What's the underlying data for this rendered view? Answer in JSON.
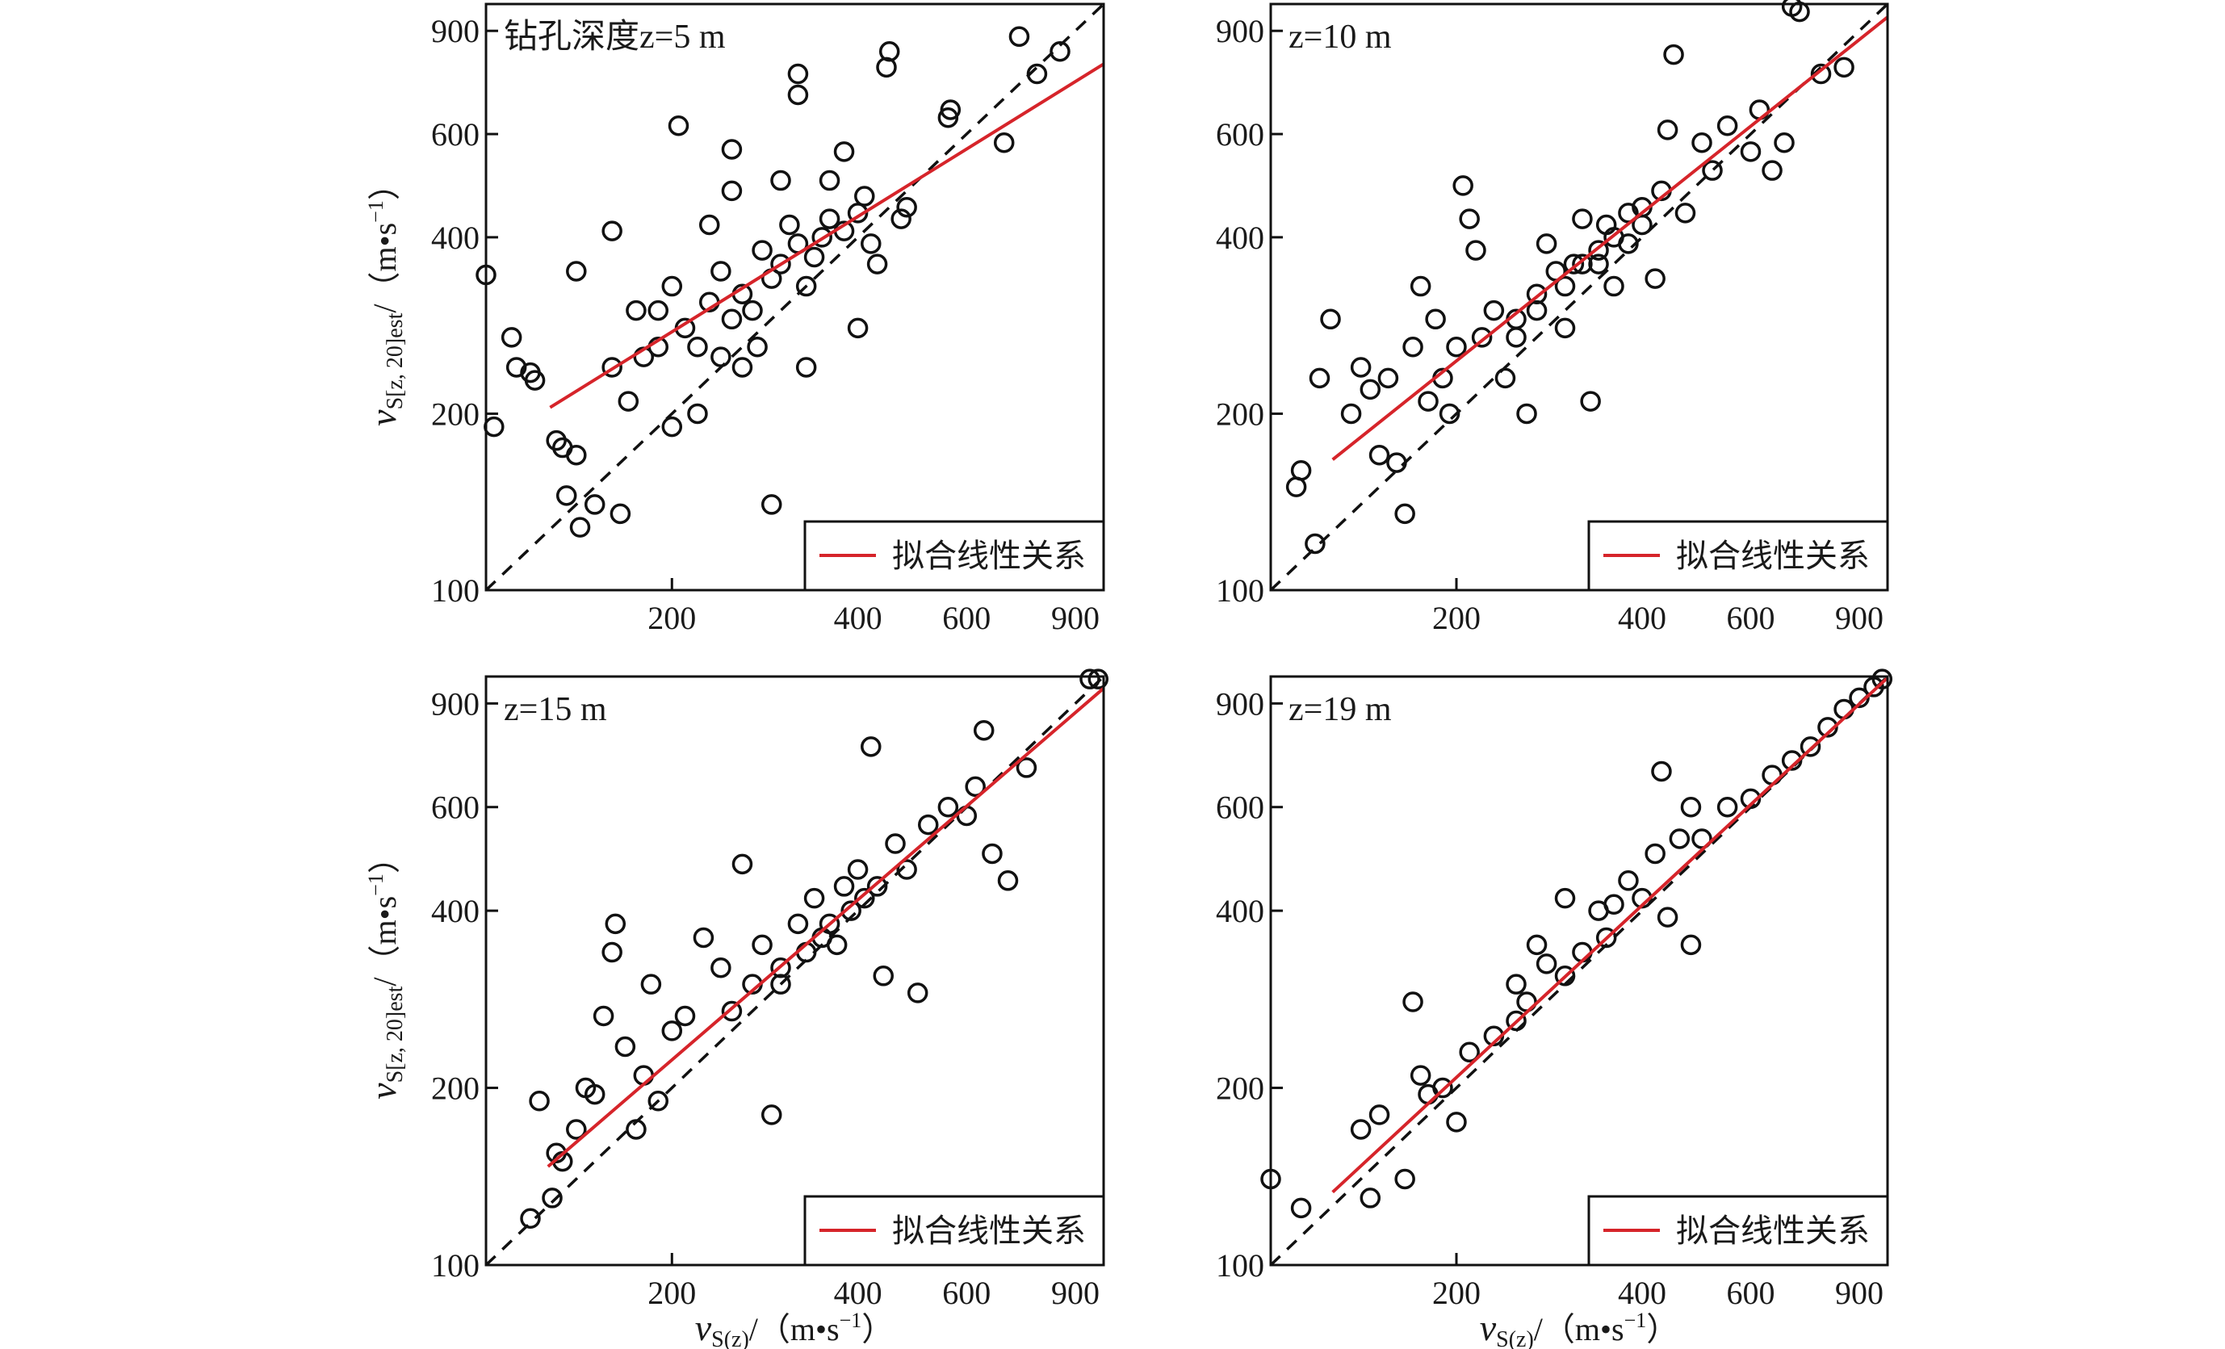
{
  "chart_data": [
    {
      "type": "scatter",
      "annotation": "钻孔深度z=5 m",
      "legend": "拟合线性关系",
      "legend_position": "bottom-right",
      "xscale": "log",
      "yscale": "log",
      "xlim": [
        100,
        1000
      ],
      "ylim": [
        100,
        1000
      ],
      "xticks": [
        200,
        400,
        600,
        900
      ],
      "yticks": [
        100,
        200,
        400,
        600,
        900
      ],
      "reference_line": "1:1 dashed",
      "fit_line": [
        [
          127,
          205
        ],
        [
          1000,
          790
        ]
      ],
      "points": [
        [
          100,
          345
        ],
        [
          103,
          190
        ],
        [
          110,
          270
        ],
        [
          112,
          240
        ],
        [
          118,
          235
        ],
        [
          120,
          228
        ],
        [
          130,
          180
        ],
        [
          133,
          175
        ],
        [
          135,
          145
        ],
        [
          140,
          170
        ],
        [
          142,
          128
        ],
        [
          150,
          140
        ],
        [
          165,
          135
        ],
        [
          140,
          350
        ],
        [
          160,
          410
        ],
        [
          205,
          620
        ],
        [
          250,
          565
        ],
        [
          290,
          140
        ],
        [
          320,
          700
        ],
        [
          320,
          760
        ],
        [
          330,
          240
        ],
        [
          450,
          830
        ],
        [
          445,
          780
        ],
        [
          560,
          640
        ],
        [
          565,
          660
        ],
        [
          690,
          580
        ],
        [
          730,
          880
        ],
        [
          780,
          760
        ],
        [
          850,
          830
        ],
        [
          400,
          280
        ],
        [
          420,
          390
        ],
        [
          430,
          360
        ],
        [
          470,
          430
        ],
        [
          480,
          450
        ],
        [
          170,
          210
        ],
        [
          180,
          250
        ],
        [
          190,
          300
        ],
        [
          200,
          330
        ],
        [
          210,
          280
        ],
        [
          220,
          260
        ],
        [
          230,
          310
        ],
        [
          240,
          350
        ],
        [
          250,
          290
        ],
        [
          260,
          320
        ],
        [
          270,
          300
        ],
        [
          280,
          380
        ],
        [
          290,
          340
        ],
        [
          300,
          360
        ],
        [
          310,
          420
        ],
        [
          320,
          390
        ],
        [
          340,
          370
        ],
        [
          350,
          400
        ],
        [
          360,
          430
        ],
        [
          380,
          410
        ],
        [
          400,
          440
        ],
        [
          250,
          480
        ],
        [
          260,
          240
        ],
        [
          300,
          500
        ],
        [
          230,
          420
        ],
        [
          190,
          260
        ],
        [
          200,
          190
        ],
        [
          220,
          200
        ],
        [
          240,
          250
        ],
        [
          275,
          260
        ],
        [
          330,
          330
        ],
        [
          360,
          500
        ],
        [
          380,
          560
        ],
        [
          410,
          470
        ],
        [
          160,
          240
        ],
        [
          175,
          300
        ]
      ]
    },
    {
      "type": "scatter",
      "annotation": "z=10 m",
      "legend": "拟合线性关系",
      "legend_position": "bottom-right",
      "xscale": "log",
      "yscale": "log",
      "xlim": [
        100,
        1000
      ],
      "ylim": [
        100,
        1000
      ],
      "xticks": [
        200,
        400,
        600,
        900
      ],
      "yticks": [
        100,
        200,
        400,
        600,
        900
      ],
      "reference_line": "1:1 dashed",
      "fit_line": [
        [
          126,
          167
        ],
        [
          1000,
          950
        ]
      ],
      "points": [
        [
          110,
          150
        ],
        [
          112,
          160
        ],
        [
          120,
          230
        ],
        [
          118,
          120
        ],
        [
          125,
          290
        ],
        [
          135,
          200
        ],
        [
          140,
          240
        ],
        [
          145,
          220
        ],
        [
          150,
          170
        ],
        [
          155,
          230
        ],
        [
          160,
          165
        ],
        [
          165,
          135
        ],
        [
          170,
          260
        ],
        [
          175,
          330
        ],
        [
          180,
          210
        ],
        [
          185,
          290
        ],
        [
          190,
          230
        ],
        [
          195,
          200
        ],
        [
          200,
          260
        ],
        [
          205,
          490
        ],
        [
          210,
          430
        ],
        [
          215,
          380
        ],
        [
          220,
          270
        ],
        [
          230,
          300
        ],
        [
          240,
          230
        ],
        [
          250,
          290
        ],
        [
          260,
          200
        ],
        [
          270,
          320
        ],
        [
          280,
          390
        ],
        [
          290,
          350
        ],
        [
          300,
          280
        ],
        [
          310,
          360
        ],
        [
          320,
          430
        ],
        [
          330,
          210
        ],
        [
          340,
          380
        ],
        [
          350,
          420
        ],
        [
          360,
          330
        ],
        [
          380,
          440
        ],
        [
          400,
          420
        ],
        [
          420,
          340
        ],
        [
          440,
          610
        ],
        [
          450,
          820
        ],
        [
          470,
          440
        ],
        [
          500,
          580
        ],
        [
          520,
          520
        ],
        [
          550,
          620
        ],
        [
          600,
          560
        ],
        [
          620,
          660
        ],
        [
          680,
          580
        ],
        [
          700,
          990
        ],
        [
          720,
          970
        ],
        [
          780,
          760
        ],
        [
          850,
          780
        ],
        [
          650,
          520
        ],
        [
          250,
          270
        ],
        [
          270,
          300
        ],
        [
          300,
          330
        ],
        [
          320,
          360
        ],
        [
          340,
          360
        ],
        [
          360,
          400
        ],
        [
          380,
          390
        ],
        [
          400,
          450
        ],
        [
          430,
          480
        ]
      ]
    },
    {
      "type": "scatter",
      "annotation": "z=15 m",
      "legend": "拟合线性关系",
      "legend_position": "bottom-right",
      "xscale": "log",
      "yscale": "log",
      "xlim": [
        100,
        1000
      ],
      "ylim": [
        100,
        1000
      ],
      "xticks": [
        200,
        400,
        600,
        900
      ],
      "yticks": [
        100,
        200,
        400,
        600,
        900
      ],
      "reference_line": "1:1 dashed",
      "fit_line": [
        [
          126,
          147
        ],
        [
          1000,
          955
        ]
      ],
      "points": [
        [
          118,
          120
        ],
        [
          122,
          190
        ],
        [
          128,
          130
        ],
        [
          130,
          155
        ],
        [
          133,
          150
        ],
        [
          140,
          170
        ],
        [
          145,
          200
        ],
        [
          150,
          195
        ],
        [
          155,
          265
        ],
        [
          160,
          340
        ],
        [
          162,
          380
        ],
        [
          168,
          235
        ],
        [
          175,
          170
        ],
        [
          180,
          210
        ],
        [
          185,
          300
        ],
        [
          190,
          190
        ],
        [
          200,
          250
        ],
        [
          210,
          265
        ],
        [
          225,
          360
        ],
        [
          240,
          320
        ],
        [
          250,
          270
        ],
        [
          260,
          480
        ],
        [
          270,
          300
        ],
        [
          280,
          350
        ],
        [
          290,
          180
        ],
        [
          300,
          320
        ],
        [
          320,
          380
        ],
        [
          340,
          420
        ],
        [
          360,
          380
        ],
        [
          380,
          440
        ],
        [
          400,
          470
        ],
        [
          420,
          760
        ],
        [
          440,
          310
        ],
        [
          460,
          520
        ],
        [
          500,
          290
        ],
        [
          520,
          560
        ],
        [
          560,
          600
        ],
        [
          600,
          580
        ],
        [
          620,
          650
        ],
        [
          640,
          810
        ],
        [
          660,
          500
        ],
        [
          700,
          450
        ],
        [
          750,
          700
        ],
        [
          950,
          990
        ],
        [
          980,
          990
        ],
        [
          300,
          300
        ],
        [
          330,
          340
        ],
        [
          350,
          360
        ],
        [
          370,
          350
        ],
        [
          390,
          400
        ],
        [
          410,
          420
        ],
        [
          430,
          440
        ],
        [
          480,
          470
        ]
      ]
    },
    {
      "type": "scatter",
      "annotation": "z=19 m",
      "legend": "拟合线性关系",
      "legend_position": "bottom-right",
      "xscale": "log",
      "yscale": "log",
      "xlim": [
        100,
        1000
      ],
      "ylim": [
        100,
        1000
      ],
      "xticks": [
        200,
        400,
        600,
        900
      ],
      "yticks": [
        100,
        200,
        400,
        600,
        900
      ],
      "reference_line": "1:1 dashed",
      "fit_line": [
        [
          126,
          133
        ],
        [
          1000,
          995
        ]
      ],
      "points": [
        [
          100,
          140
        ],
        [
          112,
          125
        ],
        [
          140,
          170
        ],
        [
          145,
          130
        ],
        [
          150,
          180
        ],
        [
          165,
          140
        ],
        [
          170,
          280
        ],
        [
          175,
          210
        ],
        [
          180,
          195
        ],
        [
          200,
          175
        ],
        [
          210,
          230
        ],
        [
          230,
          245
        ],
        [
          250,
          300
        ],
        [
          260,
          280
        ],
        [
          270,
          350
        ],
        [
          280,
          325
        ],
        [
          300,
          310
        ],
        [
          320,
          340
        ],
        [
          340,
          400
        ],
        [
          350,
          360
        ],
        [
          360,
          410
        ],
        [
          380,
          450
        ],
        [
          400,
          420
        ],
        [
          420,
          500
        ],
        [
          430,
          690
        ],
        [
          440,
          390
        ],
        [
          460,
          530
        ],
        [
          480,
          600
        ],
        [
          500,
          530
        ],
        [
          550,
          600
        ],
        [
          600,
          620
        ],
        [
          650,
          680
        ],
        [
          700,
          720
        ],
        [
          750,
          760
        ],
        [
          800,
          820
        ],
        [
          850,
          880
        ],
        [
          900,
          920
        ],
        [
          950,
          960
        ],
        [
          980,
          990
        ],
        [
          480,
          350
        ],
        [
          300,
          420
        ],
        [
          250,
          260
        ],
        [
          190,
          200
        ]
      ]
    }
  ],
  "axes": {
    "ylabel": {
      "symbol": "v",
      "sub": "S[z, 20]est",
      "unit": "/（m•s",
      "sup": "−1",
      "close": "）"
    },
    "xlabel": {
      "symbol": "v",
      "sub": "S(z)",
      "unit": "/（m•s",
      "sup": "−1",
      "close": "）"
    }
  },
  "colors": {
    "fit": "#d6242a",
    "points": "#111111",
    "reference": "#111111"
  }
}
